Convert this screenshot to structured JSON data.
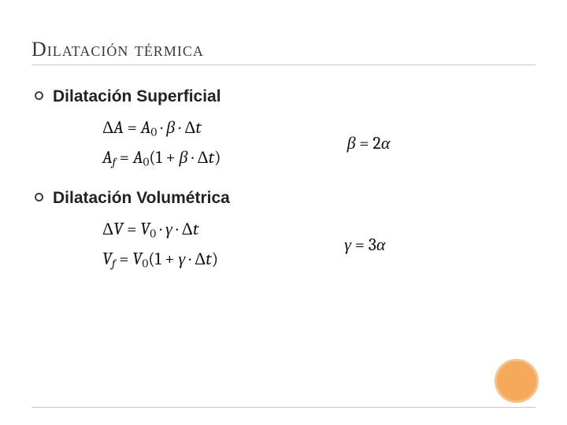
{
  "title": "Dilatación térmica",
  "sections": [
    {
      "heading": "Dilatación Superficial",
      "left_equations": [
        "ΔA = A₀ · β · Δt",
        "A𝒻 = A₀(1 + β · Δt)"
      ],
      "right_equation": "β = 2α"
    },
    {
      "heading": "Dilatación Volumétrica",
      "left_equations": [
        "ΔV = V₀ · γ · Δt",
        "V𝒻 = V₀(1 + γ · Δt)"
      ],
      "right_equation": "γ = 3α"
    }
  ],
  "styling": {
    "title_color": "#3a3a3a",
    "title_fontsize": 26,
    "heading_fontsize": 21,
    "heading_weight": 700,
    "equation_fontsize": 22,
    "equation_color": "#111111",
    "bullet_border_color": "#404040",
    "divider_color": "#c8c8c8",
    "accent_circle_fill": "#f6a95a",
    "accent_circle_border": "#f3c38a",
    "background": "#ffffff"
  }
}
